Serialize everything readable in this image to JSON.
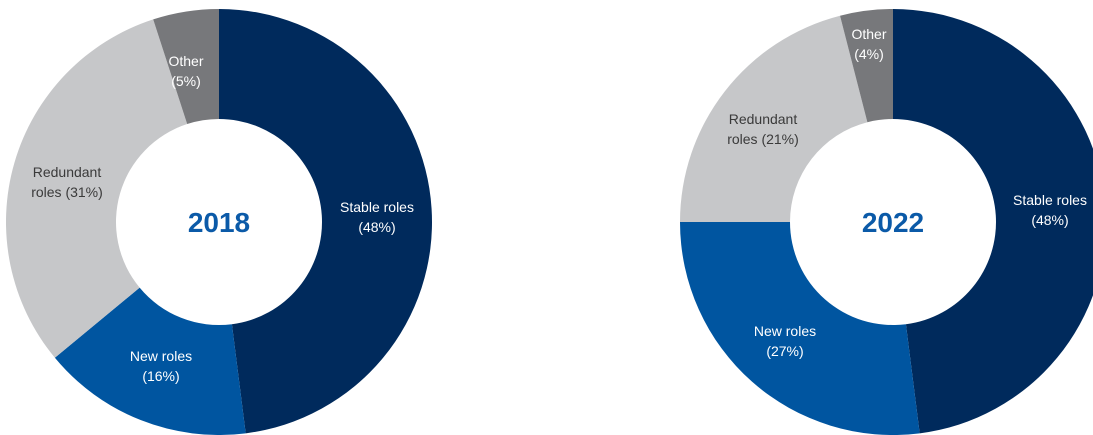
{
  "chart_data": [
    {
      "type": "pie",
      "title": "2018",
      "categories": [
        "Stable roles",
        "New roles",
        "Redundant roles",
        "Other"
      ],
      "values": [
        48,
        16,
        31,
        5
      ],
      "labels": [
        {
          "lines": [
            "Stable roles",
            "(48%)"
          ]
        },
        {
          "lines": [
            "New roles",
            "(16%)"
          ]
        },
        {
          "lines": [
            "Redundant",
            "roles (31%)"
          ]
        },
        {
          "lines": [
            "Other",
            "(5%)"
          ]
        }
      ]
    },
    {
      "type": "pie",
      "title": "2022",
      "categories": [
        "Stable roles",
        "New roles",
        "Redundant roles",
        "Other"
      ],
      "values": [
        48,
        27,
        21,
        4
      ],
      "labels": [
        {
          "lines": [
            "Stable roles",
            "(48%)"
          ]
        },
        {
          "lines": [
            "New roles",
            "(27%)"
          ]
        },
        {
          "lines": [
            "Redundant",
            "roles (21%)"
          ]
        },
        {
          "lines": [
            "Other",
            "(4%)"
          ]
        }
      ]
    }
  ],
  "colors": {
    "Stable roles": "#002a5c",
    "New roles": "#0055a0",
    "Redundant roles": "#c6c7c9",
    "Other": "#77787b",
    "center_text": "#0b5aa8"
  }
}
